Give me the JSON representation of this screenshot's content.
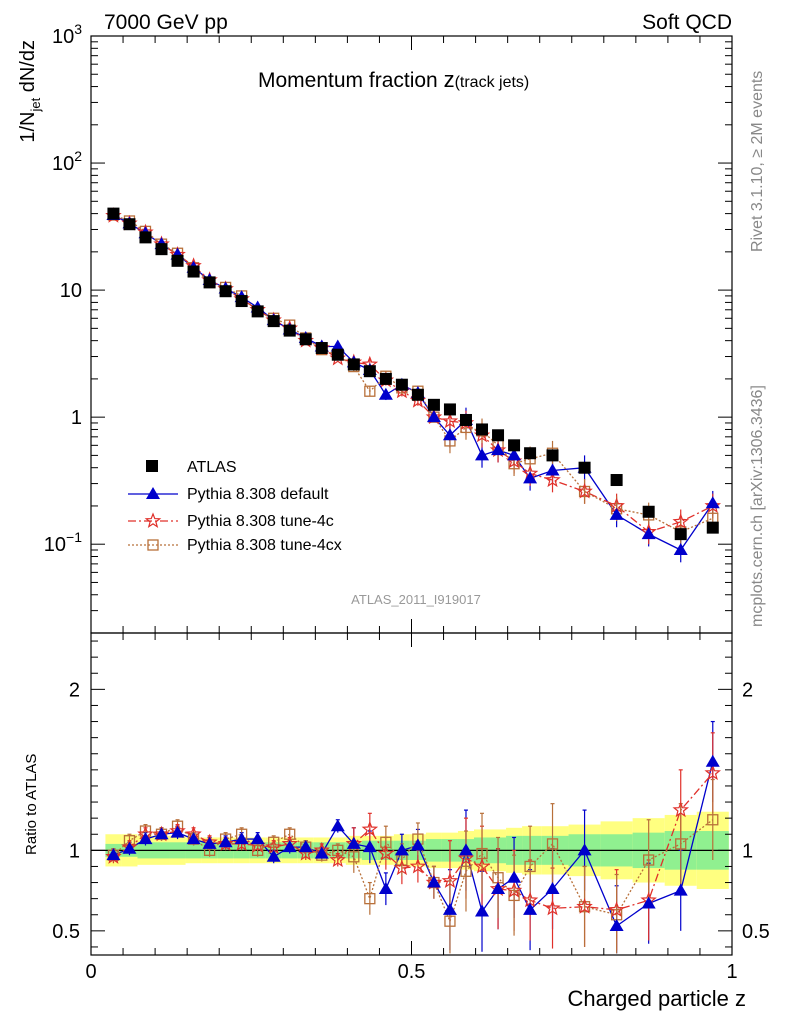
{
  "header": {
    "left": "7000 GeV pp",
    "right": "Soft QCD"
  },
  "side": {
    "rivet": "Rivet 3.1.10, ≥ 2M events",
    "mcplots": "mcplots.cern.ch [arXiv:1306.3436]"
  },
  "chart_data": {
    "type": "scatter",
    "title": "Momentum fraction z(track jets)",
    "title_main": "Momentum fraction ",
    "title_z": "z",
    "title_sub": "(track jets)",
    "analysis_id": "ATLAS_2011_I919017",
    "xlabel": "Charged particle z",
    "ylabel": "1/N_jet dN/dz",
    "ylabel_parts": [
      "1/N",
      "jet",
      " dN/dz"
    ],
    "ratio_ylabel": "Ratio to ATLAS",
    "xlim": [
      0,
      1.0
    ],
    "ylim": [
      0.02,
      1000
    ],
    "yscale": "log",
    "ratio_ylim": [
      0.35,
      2.35
    ],
    "x_ticks": [
      "0",
      "0.5",
      "1"
    ],
    "y_ticks": [
      "10^3",
      "10^2",
      "10",
      "1",
      "10^-1"
    ],
    "ratio_ticks": [
      "0.5",
      "1",
      "2"
    ],
    "legend_position": "lower-left",
    "x": [
      0.035,
      0.06,
      0.085,
      0.11,
      0.135,
      0.16,
      0.185,
      0.21,
      0.235,
      0.26,
      0.285,
      0.31,
      0.335,
      0.36,
      0.385,
      0.41,
      0.435,
      0.46,
      0.485,
      0.51,
      0.535,
      0.56,
      0.585,
      0.61,
      0.635,
      0.66,
      0.685,
      0.72,
      0.77,
      0.82,
      0.87,
      0.92,
      0.97
    ],
    "series": [
      {
        "name": "ATLAS",
        "color": "#000000",
        "marker": "square",
        "values": [
          40,
          33,
          26,
          21,
          17,
          14,
          11.5,
          9.8,
          8.2,
          6.8,
          5.7,
          4.8,
          4.1,
          3.5,
          3.1,
          2.6,
          2.3,
          2.0,
          1.8,
          1.5,
          1.25,
          1.15,
          0.95,
          0.8,
          0.72,
          0.6,
          0.52,
          0.5,
          0.4,
          0.32,
          0.18,
          0.12,
          0.135
        ]
      },
      {
        "name": "Pythia 8.308 default",
        "color": "#0000cc",
        "marker": "triangle",
        "values": [
          39,
          33.5,
          28,
          23,
          19,
          15,
          12,
          10.3,
          8.8,
          7.3,
          5.8,
          4.9,
          4.2,
          3.6,
          3.6,
          2.7,
          2.35,
          1.5,
          1.8,
          1.55,
          1.0,
          0.72,
          0.95,
          0.5,
          0.55,
          0.5,
          0.33,
          0.38,
          0.4,
          0.17,
          0.12,
          0.09,
          0.21
        ]
      },
      {
        "name": "Pythia 8.308 tune-4c",
        "color": "#e0302a",
        "marker": "star",
        "values": [
          38.5,
          33.5,
          28.5,
          23,
          19,
          15.5,
          12,
          10.2,
          8.5,
          7.0,
          5.8,
          5.0,
          4.0,
          3.5,
          2.9,
          2.7,
          2.6,
          1.95,
          1.6,
          1.35,
          1.0,
          0.93,
          0.9,
          0.72,
          0.55,
          0.45,
          0.36,
          0.32,
          0.26,
          0.2,
          0.125,
          0.15,
          0.2
        ]
      },
      {
        "name": "Pythia 8.308 tune-4cx",
        "color": "#b8703a",
        "marker": "open-square",
        "values": [
          39,
          35,
          29,
          23,
          19.5,
          15,
          11.5,
          10.5,
          9.0,
          6.8,
          6.0,
          5.3,
          4.2,
          3.4,
          3.1,
          2.5,
          1.6,
          2.1,
          1.7,
          1.6,
          1.0,
          0.65,
          0.83,
          0.78,
          0.6,
          0.43,
          0.47,
          0.52,
          0.26,
          0.19,
          0.17,
          0.125,
          0.16
        ]
      }
    ],
    "ratio_series": [
      {
        "name": "Pythia 8.308 default",
        "values": [
          0.97,
          1.01,
          1.07,
          1.1,
          1.11,
          1.07,
          1.04,
          1.05,
          1.07,
          1.07,
          0.96,
          1.02,
          1.02,
          0.98,
          1.15,
          1.04,
          1.02,
          0.76,
          1.0,
          1.03,
          0.8,
          0.63,
          1.0,
          0.62,
          0.76,
          0.83,
          0.63,
          0.76,
          1.0,
          0.53,
          0.67,
          0.75,
          1.55
        ]
      },
      {
        "name": "Pythia 8.308 tune-4c",
        "values": [
          0.96,
          1.02,
          1.1,
          1.1,
          1.12,
          1.1,
          1.05,
          1.04,
          1.04,
          1.03,
          1.02,
          1.04,
          0.98,
          1.0,
          0.94,
          1.04,
          1.13,
          0.98,
          0.89,
          0.9,
          0.8,
          0.81,
          0.95,
          0.9,
          0.76,
          0.75,
          0.69,
          0.64,
          0.65,
          0.63,
          0.69,
          1.25,
          1.48
        ]
      },
      {
        "name": "Pythia 8.308 tune-4cx",
        "values": [
          0.97,
          1.06,
          1.12,
          1.1,
          1.15,
          1.07,
          1.0,
          1.07,
          1.1,
          1.0,
          1.05,
          1.1,
          1.02,
          0.97,
          1.0,
          0.96,
          0.7,
          1.05,
          0.94,
          1.07,
          0.8,
          0.56,
          0.87,
          0.98,
          0.83,
          0.72,
          0.9,
          1.04,
          0.65,
          0.6,
          0.94,
          1.04,
          1.19
        ]
      }
    ],
    "ratio_band_inner": [
      0.04,
      0.04,
      0.05,
      0.05,
      0.05,
      0.05,
      0.05,
      0.05,
      0.05,
      0.05,
      0.05,
      0.05,
      0.05,
      0.05,
      0.05,
      0.05,
      0.06,
      0.06,
      0.06,
      0.06,
      0.07,
      0.07,
      0.07,
      0.08,
      0.08,
      0.09,
      0.09,
      0.09,
      0.1,
      0.1,
      0.11,
      0.12,
      0.12
    ],
    "ratio_band_outer": [
      0.1,
      0.1,
      0.09,
      0.09,
      0.09,
      0.08,
      0.08,
      0.08,
      0.08,
      0.08,
      0.08,
      0.08,
      0.08,
      0.08,
      0.08,
      0.09,
      0.09,
      0.09,
      0.1,
      0.1,
      0.11,
      0.11,
      0.12,
      0.13,
      0.13,
      0.14,
      0.15,
      0.15,
      0.16,
      0.18,
      0.2,
      0.22,
      0.24
    ]
  }
}
